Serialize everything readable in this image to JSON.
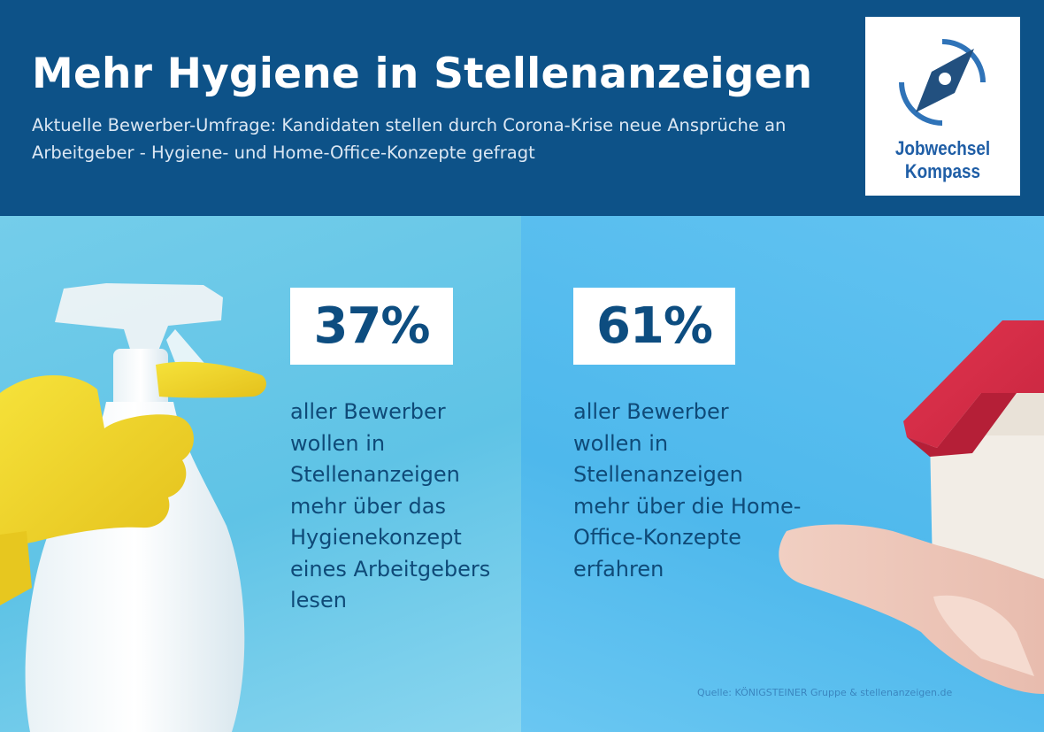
{
  "header": {
    "title": "Mehr Hygiene in Stellenanzeigen",
    "subtitle": "Aktuelle Bewerber-Umfrage: Kandidaten stellen durch Corona-Krise neue Ansprüche an Arbeitgeber - Hygiene- und Home-Office-Konzepte gefragt",
    "background_color": "#0d5288"
  },
  "logo": {
    "line1": "Jobwechsel",
    "line2": "Kompass",
    "icon": "compass-icon",
    "color": "#1f5ea6"
  },
  "stats": [
    {
      "value": "37%",
      "text": "aller Bewerber wollen in Stellenanzeigen mehr über das Hygienekonzept eines Arbeitgebers lesen"
    },
    {
      "value": "61%",
      "text": "aller Bewerber wollen in Stellenanzeigen mehr über die Home-Office-Konzepte erfahren"
    }
  ],
  "source": "Quelle: KÖNIGSTEINER Gruppe & stellenanzeigen.de",
  "images": {
    "left": "spray-bottle-with-yellow-glove",
    "right": "hand-holding-toy-house"
  },
  "colors": {
    "accent_text": "#0d4d80",
    "left_panel": "#6ccbea",
    "right_panel": "#55bcee"
  }
}
